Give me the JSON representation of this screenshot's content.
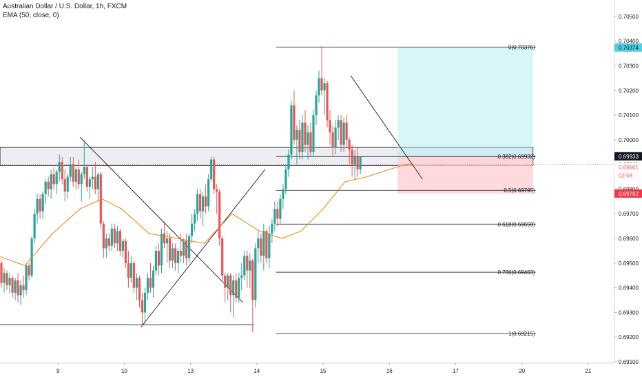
{
  "legend": {
    "symbol": "Australian Dollar / U.S. Dollar, 1h, FXCM",
    "indicator": "EMA (50, close, 0)"
  },
  "price_tags": {
    "target": "0.70374",
    "current": "0.69933",
    "ema": "0.69901",
    "countdown": "02:58",
    "stop": "0.69782"
  },
  "fib_labels": [
    "0(0.70376)",
    "0.382(0.69932)",
    "0.5(0.69795)",
    "0.618(0.69658)",
    "0.786(0.69463)",
    "1(0.69215)"
  ],
  "colors": {
    "up": "#26a69a",
    "down": "#ef5350",
    "ema": "#f57c00",
    "target_zone": "#b2ebf2",
    "stop_zone": "#ffcdd2",
    "tag_target": "#4dd0e1",
    "tag_current": "#131722",
    "tag_stop": "#f23645"
  },
  "chart_data": {
    "type": "candlestick",
    "title": "Australian Dollar / U.S. Dollar, 1h, FXCM",
    "y_ticks": [
      "0.70500",
      "0.70400",
      "0.70300",
      "0.70200",
      "0.70100",
      "0.70000",
      "0.69900",
      "0.69800",
      "0.69700",
      "0.69600",
      "0.69500",
      "0.69400",
      "0.69300",
      "0.69200",
      "0.69100"
    ],
    "ylim": [
      0.691,
      0.7055
    ],
    "x_ticks": [
      {
        "label": "9",
        "bar": 22
      },
      {
        "label": "10",
        "bar": 46
      },
      {
        "label": "13",
        "bar": 70
      },
      {
        "label": "14",
        "bar": 94
      },
      {
        "label": "15",
        "bar": 118
      },
      {
        "label": "16",
        "bar": 142
      },
      {
        "label": "17",
        "bar": 166
      },
      {
        "label": "20",
        "bar": 190
      },
      {
        "label": "21",
        "bar": 214
      }
    ],
    "xlim": [
      0,
      228
    ],
    "ema_series": {
      "name": "EMA (50, close, 0)",
      "values": [
        [
          0,
          0.6953
        ],
        [
          10,
          0.6949
        ],
        [
          20,
          0.6962
        ],
        [
          30,
          0.6972
        ],
        [
          38,
          0.6976
        ],
        [
          45,
          0.6972
        ],
        [
          55,
          0.6962
        ],
        [
          65,
          0.696
        ],
        [
          75,
          0.6958
        ],
        [
          85,
          0.697
        ],
        [
          95,
          0.6963
        ],
        [
          103,
          0.696
        ],
        [
          110,
          0.6963
        ],
        [
          118,
          0.6972
        ],
        [
          126,
          0.6983
        ],
        [
          134,
          0.6985
        ],
        [
          142,
          0.6988
        ],
        [
          148,
          0.699
        ],
        [
          150,
          0.69901
        ]
      ]
    },
    "candles": [
      [
        0.6949,
        0.6953,
        0.6942,
        0.695
      ],
      [
        0.695,
        0.6951,
        0.694,
        0.6942
      ],
      [
        0.6942,
        0.6948,
        0.6938,
        0.6946
      ],
      [
        0.6946,
        0.6947,
        0.6939,
        0.6941
      ],
      [
        0.6941,
        0.6946,
        0.6938,
        0.6944
      ],
      [
        0.6944,
        0.6945,
        0.6936,
        0.6938
      ],
      [
        0.6938,
        0.6944,
        0.6935,
        0.6943
      ],
      [
        0.6943,
        0.6946,
        0.6934,
        0.6937
      ],
      [
        0.6937,
        0.6943,
        0.6933,
        0.6941
      ],
      [
        0.6941,
        0.6945,
        0.6936,
        0.6939
      ],
      [
        0.6939,
        0.695,
        0.6937,
        0.6949
      ],
      [
        0.6949,
        0.695,
        0.6943,
        0.6945
      ],
      [
        0.6945,
        0.6961,
        0.6944,
        0.696
      ],
      [
        0.696,
        0.6972,
        0.6958,
        0.697
      ],
      [
        0.697,
        0.6978,
        0.6966,
        0.6976
      ],
      [
        0.6976,
        0.6978,
        0.6968,
        0.6971
      ],
      [
        0.6971,
        0.6979,
        0.6968,
        0.6978
      ],
      [
        0.6978,
        0.6984,
        0.6974,
        0.6983
      ],
      [
        0.6983,
        0.6985,
        0.6977,
        0.698
      ],
      [
        0.698,
        0.6988,
        0.6976,
        0.6986
      ],
      [
        0.6986,
        0.6989,
        0.698,
        0.6982
      ],
      [
        0.6982,
        0.6988,
        0.6978,
        0.6987
      ],
      [
        0.6987,
        0.6994,
        0.6983,
        0.6991
      ],
      [
        0.6991,
        0.6993,
        0.6982,
        0.6984
      ],
      [
        0.6984,
        0.6988,
        0.6975,
        0.6979
      ],
      [
        0.6979,
        0.6986,
        0.6976,
        0.6985
      ],
      [
        0.6985,
        0.6993,
        0.6983,
        0.699
      ],
      [
        0.699,
        0.6993,
        0.6981,
        0.6983
      ],
      [
        0.6983,
        0.6989,
        0.698,
        0.6988
      ],
      [
        0.6988,
        0.6992,
        0.698,
        0.6982
      ],
      [
        0.6982,
        0.6987,
        0.6975,
        0.6986
      ],
      [
        0.6986,
        0.7,
        0.6984,
        0.6989
      ],
      [
        0.6989,
        0.699,
        0.6979,
        0.6981
      ],
      [
        0.6981,
        0.6985,
        0.6976,
        0.6984
      ],
      [
        0.6984,
        0.6989,
        0.698,
        0.6985
      ],
      [
        0.6985,
        0.6991,
        0.6978,
        0.698
      ],
      [
        0.698,
        0.6987,
        0.6975,
        0.6986
      ],
      [
        0.6986,
        0.6987,
        0.6964,
        0.6966
      ],
      [
        0.6966,
        0.6967,
        0.6952,
        0.6956
      ],
      [
        0.6956,
        0.6962,
        0.6952,
        0.696
      ],
      [
        0.696,
        0.6962,
        0.6955,
        0.6957
      ],
      [
        0.6957,
        0.6966,
        0.6955,
        0.6964
      ],
      [
        0.6964,
        0.6966,
        0.6956,
        0.6958
      ],
      [
        0.6958,
        0.6965,
        0.6955,
        0.6963
      ],
      [
        0.6963,
        0.6964,
        0.6953,
        0.6955
      ],
      [
        0.6955,
        0.696,
        0.6952,
        0.6959
      ],
      [
        0.6959,
        0.696,
        0.6948,
        0.695
      ],
      [
        0.695,
        0.6955,
        0.694,
        0.6944
      ],
      [
        0.6944,
        0.6953,
        0.6942,
        0.695
      ],
      [
        0.695,
        0.6951,
        0.6938,
        0.694
      ],
      [
        0.694,
        0.6946,
        0.6935,
        0.6944
      ],
      [
        0.6944,
        0.6945,
        0.6932,
        0.6935
      ],
      [
        0.6935,
        0.6938,
        0.6924,
        0.693
      ],
      [
        0.693,
        0.694,
        0.6925,
        0.6938
      ],
      [
        0.6938,
        0.6946,
        0.6935,
        0.6944
      ],
      [
        0.6944,
        0.695,
        0.6938,
        0.694
      ],
      [
        0.694,
        0.6949,
        0.6936,
        0.6947
      ],
      [
        0.6947,
        0.6957,
        0.6945,
        0.6955
      ],
      [
        0.6955,
        0.6958,
        0.6945,
        0.6949
      ],
      [
        0.6949,
        0.6964,
        0.6946,
        0.6962
      ],
      [
        0.6962,
        0.6967,
        0.6956,
        0.6958
      ],
      [
        0.6958,
        0.6963,
        0.695,
        0.696
      ],
      [
        0.696,
        0.6962,
        0.6948,
        0.6951
      ],
      [
        0.6951,
        0.6958,
        0.6948,
        0.6956
      ],
      [
        0.6956,
        0.6958,
        0.6947,
        0.695
      ],
      [
        0.695,
        0.6956,
        0.6946,
        0.6955
      ],
      [
        0.6955,
        0.6962,
        0.695,
        0.6953
      ],
      [
        0.6953,
        0.696,
        0.695,
        0.6959
      ],
      [
        0.6959,
        0.6962,
        0.6949,
        0.6952
      ],
      [
        0.6952,
        0.6962,
        0.695,
        0.6961
      ],
      [
        0.6961,
        0.697,
        0.6958,
        0.6966
      ],
      [
        0.6966,
        0.6972,
        0.6963,
        0.697
      ],
      [
        0.697,
        0.698,
        0.6967,
        0.6978
      ],
      [
        0.6978,
        0.698,
        0.6968,
        0.6971
      ],
      [
        0.6971,
        0.6979,
        0.6965,
        0.6977
      ],
      [
        0.6977,
        0.6982,
        0.697,
        0.6973
      ],
      [
        0.6973,
        0.6986,
        0.6971,
        0.6984
      ],
      [
        0.6984,
        0.6993,
        0.6983,
        0.6992
      ],
      [
        0.6992,
        0.6993,
        0.6978,
        0.698
      ],
      [
        0.698,
        0.6982,
        0.697,
        0.6979
      ],
      [
        0.6979,
        0.698,
        0.6957,
        0.696
      ],
      [
        0.696,
        0.6961,
        0.6943,
        0.6945
      ],
      [
        0.6945,
        0.6946,
        0.6934,
        0.694
      ],
      [
        0.694,
        0.6946,
        0.6935,
        0.6945
      ],
      [
        0.6945,
        0.6946,
        0.693,
        0.6937
      ],
      [
        0.6937,
        0.6945,
        0.6928,
        0.6943
      ],
      [
        0.6943,
        0.6946,
        0.6934,
        0.6936
      ],
      [
        0.6936,
        0.6946,
        0.6934,
        0.6944
      ],
      [
        0.6944,
        0.695,
        0.6939,
        0.6945
      ],
      [
        0.6945,
        0.6955,
        0.6943,
        0.6953
      ],
      [
        0.6953,
        0.6955,
        0.694,
        0.6947
      ],
      [
        0.6947,
        0.6954,
        0.694,
        0.6951
      ],
      [
        0.6951,
        0.6952,
        0.6922,
        0.6935
      ],
      [
        0.6935,
        0.6958,
        0.6932,
        0.6956
      ],
      [
        0.6956,
        0.6963,
        0.695,
        0.696
      ],
      [
        0.696,
        0.6962,
        0.695,
        0.6953
      ],
      [
        0.6953,
        0.6966,
        0.6947,
        0.6963
      ],
      [
        0.6963,
        0.6964,
        0.695,
        0.6952
      ],
      [
        0.6952,
        0.6965,
        0.6948,
        0.6962
      ],
      [
        0.6962,
        0.6968,
        0.6958,
        0.6966
      ],
      [
        0.6966,
        0.6975,
        0.6963,
        0.6972
      ],
      [
        0.6972,
        0.6975,
        0.6965,
        0.6968
      ],
      [
        0.6968,
        0.6978,
        0.6966,
        0.6976
      ],
      [
        0.6976,
        0.6982,
        0.6972,
        0.698
      ],
      [
        0.698,
        0.699,
        0.6978,
        0.6988
      ],
      [
        0.6988,
        0.6996,
        0.6985,
        0.6994
      ],
      [
        0.6994,
        0.7016,
        0.6992,
        0.7014
      ],
      [
        0.7014,
        0.702,
        0.6998,
        0.7
      ],
      [
        0.7,
        0.7006,
        0.699,
        0.7004
      ],
      [
        0.7004,
        0.7008,
        0.6992,
        0.6995
      ],
      [
        0.6995,
        0.701,
        0.6992,
        0.7007
      ],
      [
        0.7007,
        0.7012,
        0.6995,
        0.6998
      ],
      [
        0.6998,
        0.7006,
        0.6992,
        0.7003
      ],
      [
        0.7003,
        0.7007,
        0.6993,
        0.6995
      ],
      [
        0.6995,
        0.7012,
        0.6993,
        0.701
      ],
      [
        0.701,
        0.702,
        0.7006,
        0.7018
      ],
      [
        0.7018,
        0.7028,
        0.7015,
        0.7025
      ],
      [
        0.7025,
        0.7038,
        0.7018,
        0.702
      ],
      [
        0.702,
        0.7025,
        0.701,
        0.7023
      ],
      [
        0.7023,
        0.7024,
        0.7005,
        0.7008
      ],
      [
        0.7008,
        0.7012,
        0.6998,
        0.7003
      ],
      [
        0.7003,
        0.7006,
        0.6993,
        0.6997
      ],
      [
        0.6997,
        0.7008,
        0.6994,
        0.7005
      ],
      [
        0.7005,
        0.701,
        0.7,
        0.7008
      ],
      [
        0.7008,
        0.701,
        0.6995,
        0.6998
      ],
      [
        0.6998,
        0.7009,
        0.6995,
        0.7007
      ],
      [
        0.7007,
        0.701,
        0.6997,
        0.7
      ],
      [
        0.7,
        0.7001,
        0.699,
        0.6996
      ],
      [
        0.6996,
        0.6998,
        0.6985,
        0.699
      ],
      [
        0.699,
        0.6996,
        0.6984,
        0.6993
      ],
      [
        0.6993,
        0.6997,
        0.6985,
        0.6988
      ],
      [
        0.6988,
        0.6993,
        0.6986,
        0.6993
      ]
    ],
    "fib_levels": [
      0.70376,
      0.69932,
      0.69795,
      0.69658,
      0.69463,
      0.69215
    ],
    "target_zone": [
      0.69932,
      0.70374
    ],
    "stop_zone": [
      0.69782,
      0.69932
    ],
    "resistance_zone": [
      0.69895,
      0.6997
    ]
  }
}
